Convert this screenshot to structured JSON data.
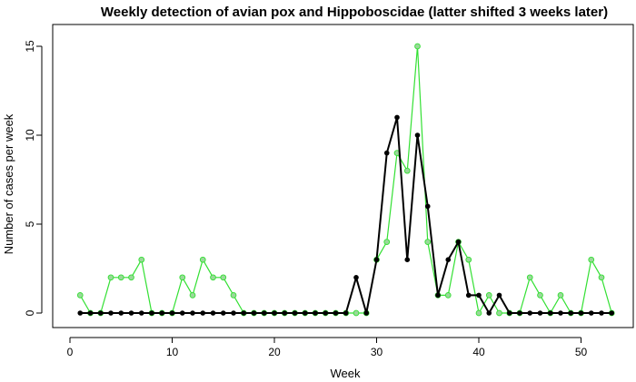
{
  "chart_data": {
    "type": "line",
    "title": "Weekly detection of avian pox and Hippoboscidae (latter shifted 3 weeks later)",
    "xlabel": "Week",
    "ylabel": "Number of cases per week",
    "xlim": [
      0,
      54
    ],
    "ylim": [
      0,
      15
    ],
    "xticks": [
      0,
      10,
      20,
      30,
      40,
      50
    ],
    "yticks": [
      0,
      5,
      10,
      15
    ],
    "grid": false,
    "x": [
      1,
      2,
      3,
      4,
      5,
      6,
      7,
      8,
      9,
      10,
      11,
      12,
      13,
      14,
      15,
      16,
      17,
      18,
      19,
      20,
      21,
      22,
      23,
      24,
      25,
      26,
      27,
      28,
      29,
      30,
      31,
      32,
      33,
      34,
      35,
      36,
      37,
      38,
      39,
      40,
      41,
      42,
      43,
      44,
      45,
      46,
      47,
      48,
      49,
      50,
      51,
      52,
      53
    ],
    "series": [
      {
        "color": "#33e033",
        "marker_fill": "#9ad89a",
        "values": [
          1,
          0,
          0,
          2,
          2,
          2,
          3,
          0,
          0,
          0,
          2,
          1,
          3,
          2,
          2,
          1,
          0,
          0,
          0,
          0,
          0,
          0,
          0,
          0,
          0,
          0,
          0,
          0,
          0,
          3,
          4,
          9,
          8,
          15,
          4,
          1,
          1,
          4,
          3,
          0,
          1,
          0,
          0,
          0,
          2,
          1,
          0,
          1,
          0,
          0,
          3,
          2,
          0
        ]
      },
      {
        "color": "#000000",
        "marker_fill": "#000000",
        "values": [
          0,
          0,
          0,
          0,
          0,
          0,
          0,
          0,
          0,
          0,
          0,
          0,
          0,
          0,
          0,
          0,
          0,
          0,
          0,
          0,
          0,
          0,
          0,
          0,
          0,
          0,
          0,
          2,
          0,
          3,
          9,
          11,
          3,
          10,
          6,
          1,
          3,
          4,
          1,
          1,
          0,
          1,
          0,
          0,
          0,
          0,
          0,
          0,
          0,
          0,
          0,
          0,
          0
        ]
      }
    ]
  }
}
